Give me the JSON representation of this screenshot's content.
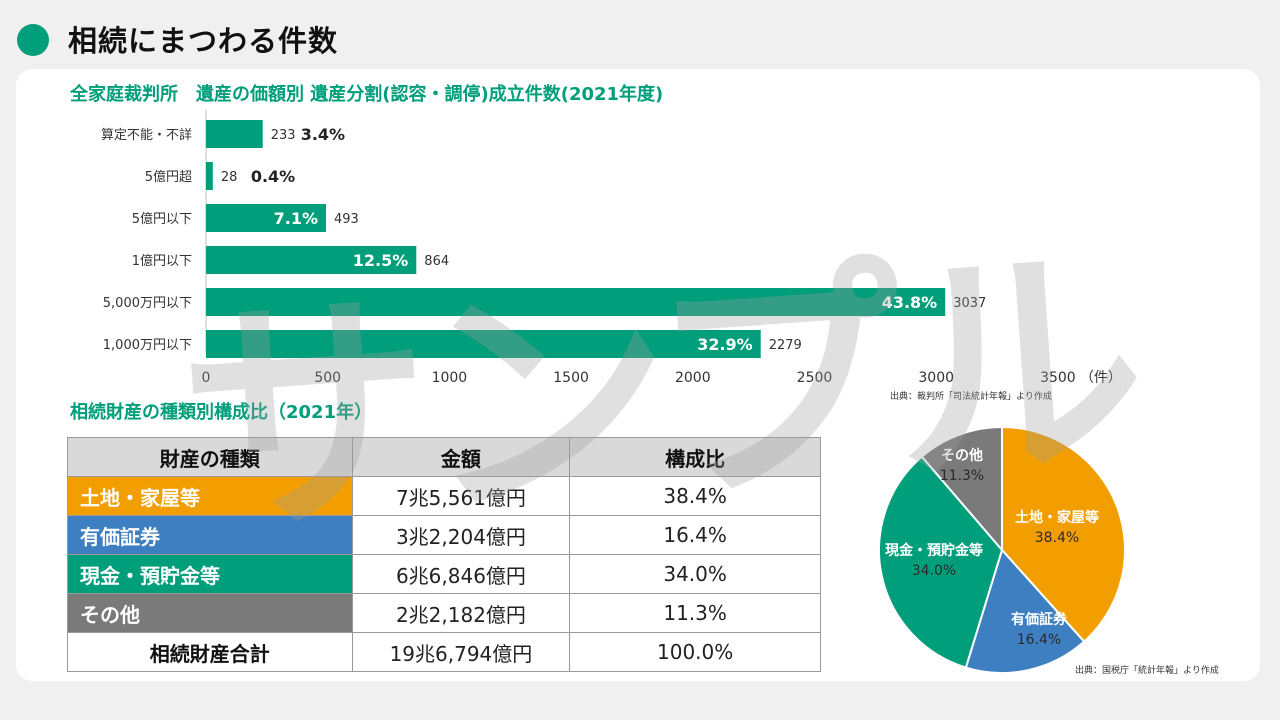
{
  "header": {
    "title": "相続にまつわる件数"
  },
  "watermark": "サンプル",
  "colors": {
    "green": "#009e7a",
    "orange": "#f29e00",
    "blue": "#3d7fc1",
    "gray": "#7a7a7a"
  },
  "chart_data": [
    {
      "type": "bar",
      "orientation": "horizontal",
      "title": "全家庭裁判所　遺産の価額別 遺産分割(認容・調停)成立件数(2021年度)",
      "categories": [
        "算定不能・不詳",
        "5億円超",
        "5億円以下",
        "1億円以下",
        "5,000万円以下",
        "1,000万円以下"
      ],
      "values": [
        233,
        28,
        493,
        864,
        3037,
        2279
      ],
      "percent_labels": [
        "3.4%",
        "0.4%",
        "7.1%",
        "12.5%",
        "43.8%",
        "32.9%"
      ],
      "xlim": [
        0,
        3500
      ],
      "xticks": [
        "0",
        "500",
        "1000",
        "1500",
        "2000",
        "2500",
        "3000",
        "3500"
      ],
      "xunit": "（件）",
      "color": "#009e7a",
      "source": "出典：裁判所「司法統計年報」より作成"
    },
    {
      "type": "pie",
      "title": "相続財産の種類別構成比（2021年）",
      "labels": [
        "土地・家屋等",
        "有価証券",
        "現金・預貯金等",
        "その他"
      ],
      "values": [
        38.4,
        16.4,
        34.0,
        11.3
      ],
      "value_labels": [
        "38.4%",
        "16.4%",
        "34.0%",
        "11.3%"
      ],
      "colors": [
        "#f29e00",
        "#3d7fc1",
        "#009e7a",
        "#7a7a7a"
      ],
      "source": "出典：国税庁「統計年報」より作成"
    }
  ],
  "table": {
    "headers": [
      "財産の種類",
      "金額",
      "構成比"
    ],
    "rows": [
      {
        "kind": "土地・家屋等",
        "amount": "7兆5,561億円",
        "ratio": "38.4%",
        "color": "#f29e00"
      },
      {
        "kind": "有価証券",
        "amount": "3兆2,204億円",
        "ratio": "16.4%",
        "color": "#3d7fc1"
      },
      {
        "kind": "現金・預貯金等",
        "amount": "6兆6,846億円",
        "ratio": "34.0%",
        "color": "#009e7a"
      },
      {
        "kind": "その他",
        "amount": "2兆2,182億円",
        "ratio": "11.3%",
        "color": "#7a7a7a"
      },
      {
        "kind": "相続財産合計",
        "amount": "19兆6,794億円",
        "ratio": "100.0%",
        "color": ""
      }
    ]
  }
}
